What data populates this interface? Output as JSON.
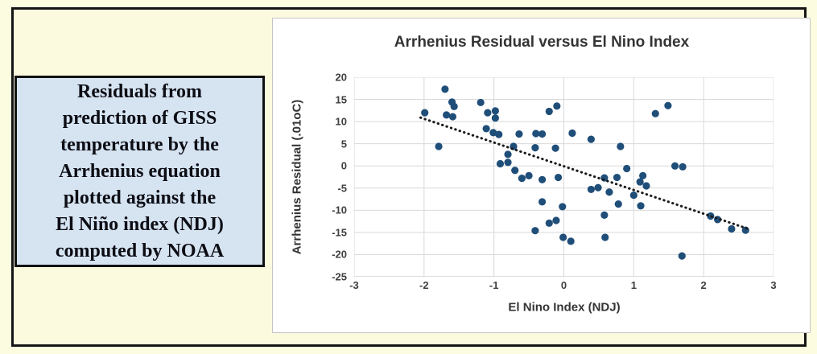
{
  "page": {
    "background": "#FCFCE0",
    "frame_border_color": "#151515"
  },
  "textbox": {
    "lines": [
      "Residuals from",
      "prediction of GISS",
      "temperature by the",
      "Arrhenius equation",
      "plotted against the",
      "El Niño index (NDJ)",
      "computed by NOAA"
    ],
    "background": "#D6E4F2",
    "border_color": "#111111"
  },
  "chart_data": {
    "type": "scatter",
    "title": "Arrhenius Residual versus El Nino Index",
    "xlabel": "El Nino Index (NDJ)",
    "ylabel": "Arrhenius Residual (.01oC)",
    "xlim": [
      -3,
      3
    ],
    "ylim": [
      -25,
      20
    ],
    "x_ticks": [
      -3,
      -2,
      -1,
      0,
      1,
      2,
      3
    ],
    "y_ticks": [
      20,
      15,
      10,
      5,
      0,
      -5,
      -10,
      -15,
      -20,
      -25
    ],
    "grid": true,
    "legend": "none",
    "grid_color": "#D9D9D9",
    "axis_color": "#BFBFBF",
    "point_color": "#1F4E79",
    "points": [
      [
        -1.99,
        12.0
      ],
      [
        -1.7,
        17.3
      ],
      [
        -1.79,
        4.4
      ],
      [
        -1.68,
        11.5
      ],
      [
        -1.59,
        11.1
      ],
      [
        -1.6,
        14.4
      ],
      [
        -1.57,
        13.4
      ],
      [
        -1.19,
        14.3
      ],
      [
        -1.09,
        12.0
      ],
      [
        -0.98,
        12.4
      ],
      [
        -0.98,
        10.8
      ],
      [
        -1.11,
        8.4
      ],
      [
        -1.01,
        7.5
      ],
      [
        -0.93,
        7.1
      ],
      [
        -0.8,
        2.6
      ],
      [
        -0.91,
        0.5
      ],
      [
        -0.8,
        0.8
      ],
      [
        -0.7,
        -1.0
      ],
      [
        -0.6,
        -2.8
      ],
      [
        -0.5,
        -2.2
      ],
      [
        -0.31,
        -3.1
      ],
      [
        -0.64,
        7.2
      ],
      [
        -0.4,
        7.3
      ],
      [
        -0.31,
        7.2
      ],
      [
        -0.72,
        4.4
      ],
      [
        -0.41,
        4.1
      ],
      [
        -0.21,
        12.3
      ],
      [
        -0.1,
        13.5
      ],
      [
        -0.12,
        4.0
      ],
      [
        0.12,
        7.4
      ],
      [
        -0.08,
        -2.6
      ],
      [
        -0.41,
        -14.6
      ],
      [
        -0.21,
        -12.9
      ],
      [
        -0.11,
        -12.3
      ],
      [
        -0.02,
        -9.2
      ],
      [
        -0.31,
        -8.1
      ],
      [
        -0.01,
        -16.1
      ],
      [
        0.1,
        -17.0
      ],
      [
        0.39,
        -5.3
      ],
      [
        0.49,
        -4.9
      ],
      [
        0.65,
        -5.9
      ],
      [
        0.58,
        -2.7
      ],
      [
        0.76,
        -2.6
      ],
      [
        0.9,
        -0.6
      ],
      [
        0.81,
        4.4
      ],
      [
        0.39,
        6.0
      ],
      [
        0.78,
        -8.6
      ],
      [
        0.58,
        -11.1
      ],
      [
        0.59,
        -16.1
      ],
      [
        1.0,
        -6.6
      ],
      [
        1.1,
        -9.0
      ],
      [
        1.09,
        -3.6
      ],
      [
        1.18,
        -4.5
      ],
      [
        1.13,
        -2.2
      ],
      [
        1.31,
        11.8
      ],
      [
        1.49,
        13.6
      ],
      [
        1.59,
        0.0
      ],
      [
        1.7,
        -0.2
      ],
      [
        1.69,
        -20.3
      ],
      [
        2.1,
        -11.3
      ],
      [
        2.2,
        -12.1
      ],
      [
        2.4,
        -14.2
      ],
      [
        2.6,
        -14.5
      ]
    ],
    "trendline": {
      "style": "dotted",
      "color": "#1A1A1A",
      "x1": -2.05,
      "y1": 10.9,
      "x2": 2.62,
      "y2": -14.1
    }
  }
}
